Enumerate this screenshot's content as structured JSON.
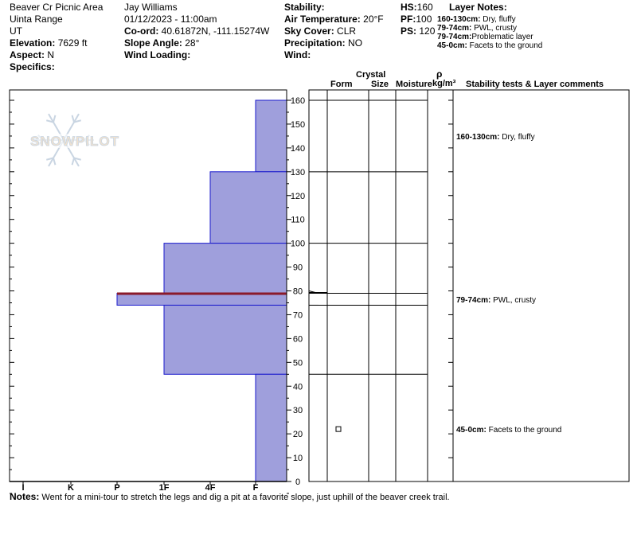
{
  "header": {
    "location": "Beaver Cr Picnic Area",
    "range": "Uinta Range",
    "state": "UT",
    "elevation_label": "Elevation:",
    "elevation": "7629 ft",
    "aspect_label": "Aspect:",
    "aspect": "N",
    "specifics_label": "Specifics:",
    "observer": "Jay Williams",
    "datetime": "01/12/2023 - 11:00am",
    "coord_label": "Co-ord:",
    "coord": "40.61872N, -111.15274W",
    "slope_label": "Slope Angle:",
    "slope": "28°",
    "wind_loading_label": "Wind Loading:",
    "stability_label": "Stability:",
    "air_temp_label": "Air Temperature:",
    "air_temp": "20°F",
    "sky_label": "Sky Cover:",
    "sky": "CLR",
    "precip_label": "Precipitation:",
    "precip": "NO",
    "wind_label": "Wind:",
    "hs_label": "HS:",
    "hs": "160",
    "pf_label": "PF:",
    "pf": "100",
    "ps_label": "PS:",
    "ps": "120"
  },
  "layer_notes": {
    "title": "Layer Notes:",
    "items": [
      {
        "range": "160-130cm:",
        "text": "Dry, fluffy"
      },
      {
        "range": "79-74cm:",
        "text": "PWL, crusty"
      },
      {
        "range": "79-74cm:",
        "text": "Problematic layer"
      },
      {
        "range": "45-0cm:",
        "text": "Facets to the ground"
      }
    ]
  },
  "columns": {
    "crystal": "Crystal",
    "form": "Form",
    "size": "Size",
    "moisture": "Moisture",
    "rho": "ρ",
    "kgm3": "kg/m³",
    "stability": "Stability tests & Layer comments"
  },
  "comments": [
    {
      "range": "160-130cm:",
      "text": "Dry, fluffy",
      "depth": 145
    },
    {
      "range": "79-74cm:",
      "text": "PWL, crusty",
      "depth": 76.5
    },
    {
      "range": "45-0cm:",
      "text": "Facets to the ground",
      "depth": 22
    }
  ],
  "logo_text": "SNOWPILOT",
  "notes_label": "Notes:",
  "notes": "Went for a mini-tour to stretch the legs and dig a pit at a favorite slope, just uphill of the beaver creek trail.",
  "colors": {
    "layer_fill": "#9f9fdc",
    "layer_edge": "#1a1acc",
    "weak_layer": "#8b1a2a",
    "logo": "#c9d5e2"
  },
  "chart_data": {
    "type": "bar",
    "orientation": "horizontal",
    "ylim": [
      0,
      160
    ],
    "yticks": [
      0,
      10,
      20,
      30,
      40,
      50,
      60,
      70,
      80,
      90,
      100,
      110,
      120,
      130,
      140,
      150,
      160
    ],
    "hardness_scale": [
      "I",
      "K",
      "P",
      "1F",
      "4F",
      "F"
    ],
    "layers": [
      {
        "top": 160,
        "bottom": 130,
        "hardness": "F"
      },
      {
        "top": 130,
        "bottom": 100,
        "hardness": "4F"
      },
      {
        "top": 100,
        "bottom": 79,
        "hardness": "1F"
      },
      {
        "top": 79,
        "bottom": 74,
        "hardness": "P",
        "weak": true
      },
      {
        "top": 74,
        "bottom": 45,
        "hardness": "1F"
      },
      {
        "top": 45,
        "bottom": 0,
        "hardness": "F"
      }
    ],
    "crystal_marker": {
      "depth": 22,
      "symbol": "□"
    }
  }
}
